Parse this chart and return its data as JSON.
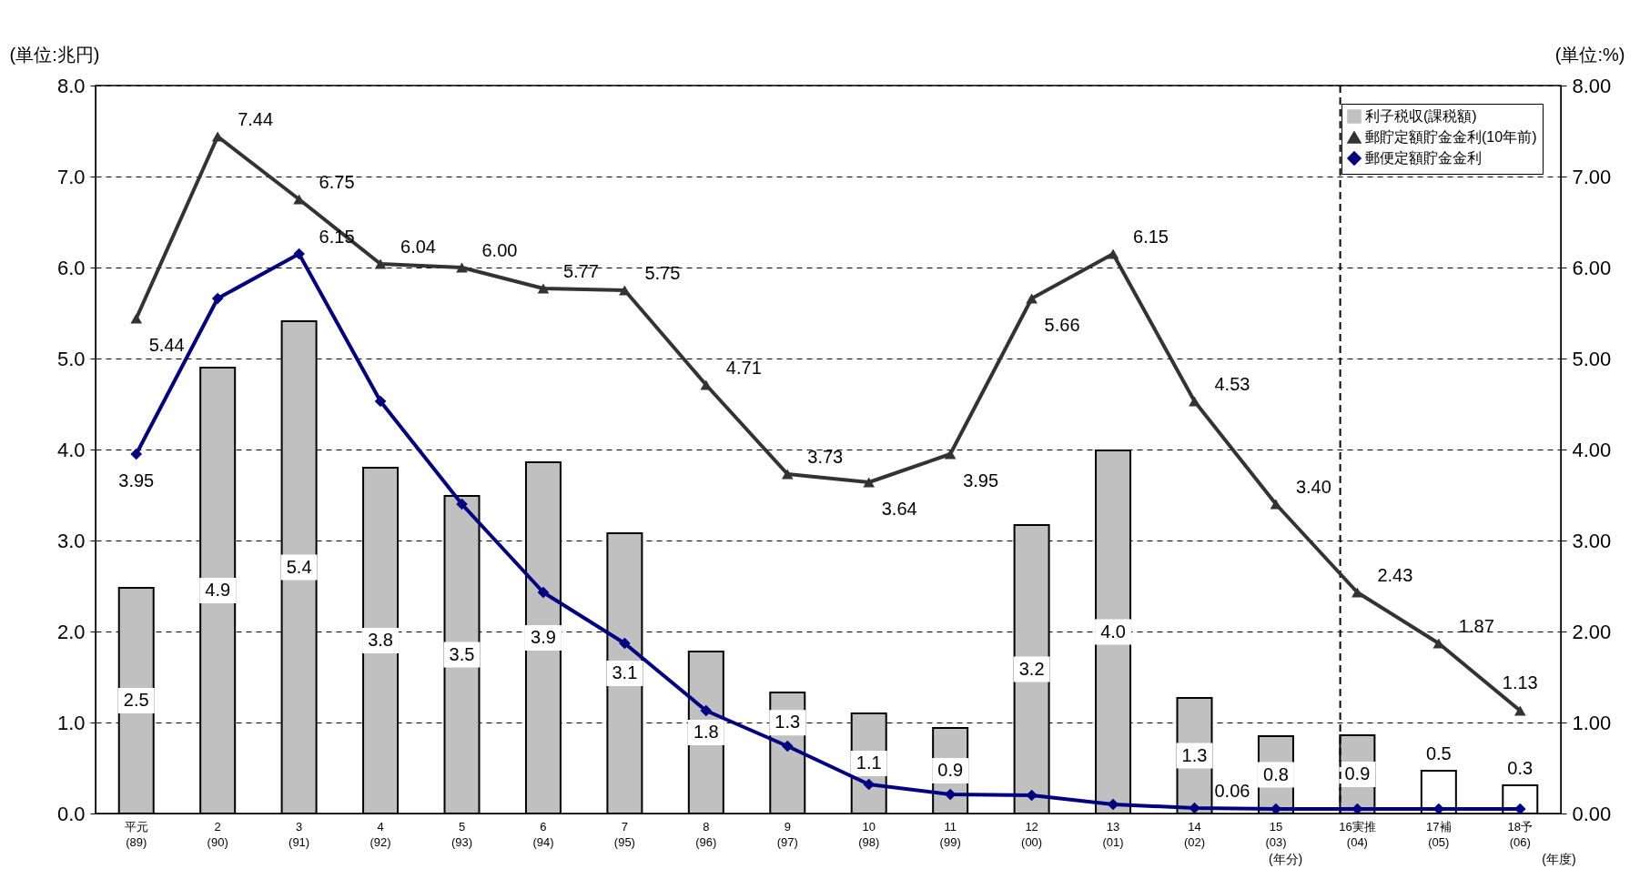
{
  "chart_data": {
    "type": "bar",
    "ylabel": "(単位:兆円)",
    "y2label": "(単位:%)",
    "categories": [
      "平元\n(89)",
      "2\n(90)",
      "3\n(91)",
      "4\n(92)",
      "5\n(93)",
      "6\n(94)",
      "7\n(95)",
      "8\n(96)",
      "9\n(97)",
      "10\n(98)",
      "11\n(99)",
      "12\n(00)",
      "13\n(01)",
      "14\n(02)",
      "15\n(03)",
      "16実推\n(04)",
      "17補\n(05)",
      "18予\n(06)"
    ],
    "ylim": [
      0,
      8
    ],
    "yticks": [
      {
        "value": 0,
        "label": "0.0"
      },
      {
        "value": 1,
        "label": "1.0"
      },
      {
        "value": 2,
        "label": "2.0"
      },
      {
        "value": 3,
        "label": "3.0"
      },
      {
        "value": 4,
        "label": "4.0"
      },
      {
        "value": 5,
        "label": "5.0"
      },
      {
        "value": 6,
        "label": "6.0"
      },
      {
        "value": 7,
        "label": "7.0"
      },
      {
        "value": 8,
        "label": "8.0"
      }
    ],
    "y2lim": [
      0,
      8
    ],
    "y2ticks": [
      {
        "value": 0,
        "label": "0.00"
      },
      {
        "value": 1,
        "label": "1.00"
      },
      {
        "value": 2,
        "label": "2.00"
      },
      {
        "value": 3,
        "label": "3.00"
      },
      {
        "value": 4,
        "label": "4.00"
      },
      {
        "value": 5,
        "label": "5.00"
      },
      {
        "value": 6,
        "label": "6.00"
      },
      {
        "value": 7,
        "label": "7.00"
      },
      {
        "value": 8,
        "label": "8.00"
      }
    ],
    "grid": "y",
    "legend": "top right",
    "ref_lines": [
      {
        "axis": "x",
        "value": "16実推\n(04)",
        "line_style": "dashed",
        "color": "#000000"
      }
    ],
    "annotations": [
      "(年分)",
      "(年度)"
    ],
    "series": [
      {
        "name": "利子税収(課税額)",
        "color": "#c0c0c0",
        "colors": [
          "#c0c0c0",
          "#c0c0c0",
          "#c0c0c0",
          "#c0c0c0",
          "#c0c0c0",
          "#c0c0c0",
          "#c0c0c0",
          "#c0c0c0",
          "#c0c0c0",
          "#c0c0c0",
          "#c0c0c0",
          "#c0c0c0",
          "#c0c0c0",
          "#c0c0c0",
          "#c0c0c0",
          "#c0c0c0",
          "#ffffff",
          "#ffffff"
        ],
        "values": [
          2.48,
          4.9,
          5.41,
          3.8,
          3.49,
          3.86,
          3.08,
          1.78,
          1.33,
          1.1,
          0.94,
          3.17,
          3.99,
          1.27,
          0.85,
          0.86,
          0.47,
          0.31
        ],
        "value_labels": [
          "2.5",
          "4.9",
          "5.4",
          "3.8",
          "3.5",
          "3.9",
          "3.1",
          "1.8",
          "1.3",
          "1.1",
          "0.9",
          "3.2",
          "4.0",
          "1.3",
          "0.8",
          "0.9",
          "0.5",
          "0.3"
        ]
      },
      {
        "type": "line",
        "name": "郵貯定額貯金金利(10年前)",
        "color": "#333333",
        "axis": "y2",
        "marker": "triangle",
        "values": [
          5.44,
          7.44,
          6.75,
          6.04,
          6.0,
          5.77,
          5.75,
          4.71,
          3.73,
          3.64,
          3.95,
          5.66,
          6.15,
          4.53,
          3.4,
          2.43,
          1.87,
          1.13
        ],
        "value_labels": [
          "5.44",
          "7.44",
          "6.75",
          "6.04",
          "6.00",
          "5.77",
          "5.75",
          "4.71",
          "3.73",
          "3.64",
          "3.95",
          "5.66",
          "6.15",
          "4.53",
          "3.40",
          "2.43",
          "1.87",
          "1.13"
        ]
      },
      {
        "type": "line",
        "name": "郵便定額貯金金利",
        "color": "#000080",
        "axis": "y2",
        "marker": "diamond",
        "values": [
          3.95,
          5.66,
          6.15,
          4.53,
          3.4,
          2.43,
          1.87,
          1.13,
          0.74,
          0.32,
          0.21,
          0.2,
          0.1,
          0.06,
          0.05,
          0.05,
          0.05,
          0.05
        ],
        "value_labels": [
          "3.95",
          null,
          "6.15",
          null,
          null,
          null,
          null,
          null,
          null,
          null,
          null,
          null,
          null,
          "0.06",
          null,
          null,
          null,
          null
        ]
      }
    ]
  }
}
